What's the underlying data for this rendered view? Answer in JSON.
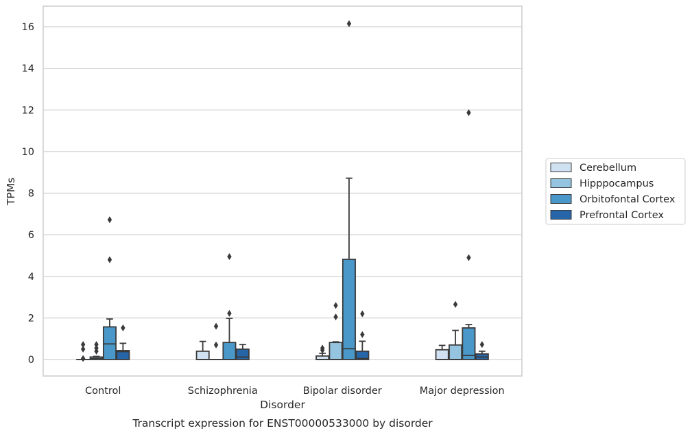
{
  "chart_data": {
    "type": "box",
    "title": "",
    "caption": "Transcript expression for ENST00000533000 by disorder",
    "xlabel": "Disorder",
    "ylabel": "TPMs",
    "ylim": [
      -0.8,
      17.0
    ],
    "yticks": [
      0,
      2,
      4,
      6,
      8,
      10,
      12,
      14,
      16
    ],
    "grid": "horizontal",
    "legend_position": "right",
    "categories": [
      "Control",
      "Schizophrenia",
      "Bipolar disorder",
      "Major depression"
    ],
    "series": [
      {
        "name": "Cerebellum",
        "color": "#d0e1f2",
        "boxes": [
          {
            "whislo": 0,
            "q1": 0,
            "med": 0,
            "q3": 0,
            "whishi": 0,
            "fliers": [
              0.05,
              0.5,
              0.72
            ]
          },
          {
            "whislo": 0,
            "q1": 0,
            "med": 0,
            "q3": 0.4,
            "whishi": 0.87,
            "fliers": []
          },
          {
            "whislo": 0,
            "q1": 0,
            "med": 0,
            "q3": 0.17,
            "whishi": 0.3,
            "fliers": [
              0.45,
              0.55
            ]
          },
          {
            "whislo": 0,
            "q1": 0,
            "med": 0,
            "q3": 0.47,
            "whishi": 0.68,
            "fliers": []
          }
        ]
      },
      {
        "name": "Hipppocampus",
        "color": "#94c4df",
        "boxes": [
          {
            "whislo": 0,
            "q1": 0,
            "med": 0.05,
            "q3": 0.12,
            "whishi": 0.15,
            "fliers": [
              0.4,
              0.55,
              0.72
            ]
          },
          {
            "whislo": 0,
            "q1": 0,
            "med": 0,
            "q3": 0,
            "whishi": 0,
            "fliers": [
              0.7,
              1.6
            ]
          },
          {
            "whislo": 0,
            "q1": 0,
            "med": 0,
            "q3": 0.82,
            "whishi": 0.85,
            "fliers": [
              2.05,
              2.6
            ]
          },
          {
            "whislo": 0,
            "q1": 0,
            "med": 0,
            "q3": 0.7,
            "whishi": 1.4,
            "fliers": [
              2.65
            ]
          }
        ]
      },
      {
        "name": "Orbitofontal Cortex",
        "color": "#4a98c9",
        "boxes": [
          {
            "whislo": 0,
            "q1": 0,
            "med": 0.75,
            "q3": 1.57,
            "whishi": 1.95,
            "fliers": [
              4.8,
              6.72
            ]
          },
          {
            "whislo": 0,
            "q1": 0,
            "med": 0,
            "q3": 0.82,
            "whishi": 1.98,
            "fliers": [
              2.22,
              4.95
            ]
          },
          {
            "whislo": 0,
            "q1": 0,
            "med": 0.52,
            "q3": 4.82,
            "whishi": 8.72,
            "fliers": [
              16.15
            ]
          },
          {
            "whislo": 0,
            "q1": 0,
            "med": 0.2,
            "q3": 1.52,
            "whishi": 1.68,
            "fliers": [
              4.9,
              11.87
            ]
          }
        ]
      },
      {
        "name": "Prefrontal Cortex",
        "color": "#2565a8",
        "boxes": [
          {
            "whislo": 0,
            "q1": 0,
            "med": 0.38,
            "q3": 0.43,
            "whishi": 0.78,
            "fliers": [
              1.52
            ]
          },
          {
            "whislo": 0,
            "q1": 0,
            "med": 0.12,
            "q3": 0.5,
            "whishi": 0.72,
            "fliers": []
          },
          {
            "whislo": 0,
            "q1": 0,
            "med": 0.05,
            "q3": 0.4,
            "whishi": 0.88,
            "fliers": [
              1.2,
              2.2
            ]
          },
          {
            "whislo": 0,
            "q1": 0,
            "med": 0.12,
            "q3": 0.27,
            "whishi": 0.4,
            "fliers": [
              0.72
            ]
          }
        ]
      }
    ]
  }
}
